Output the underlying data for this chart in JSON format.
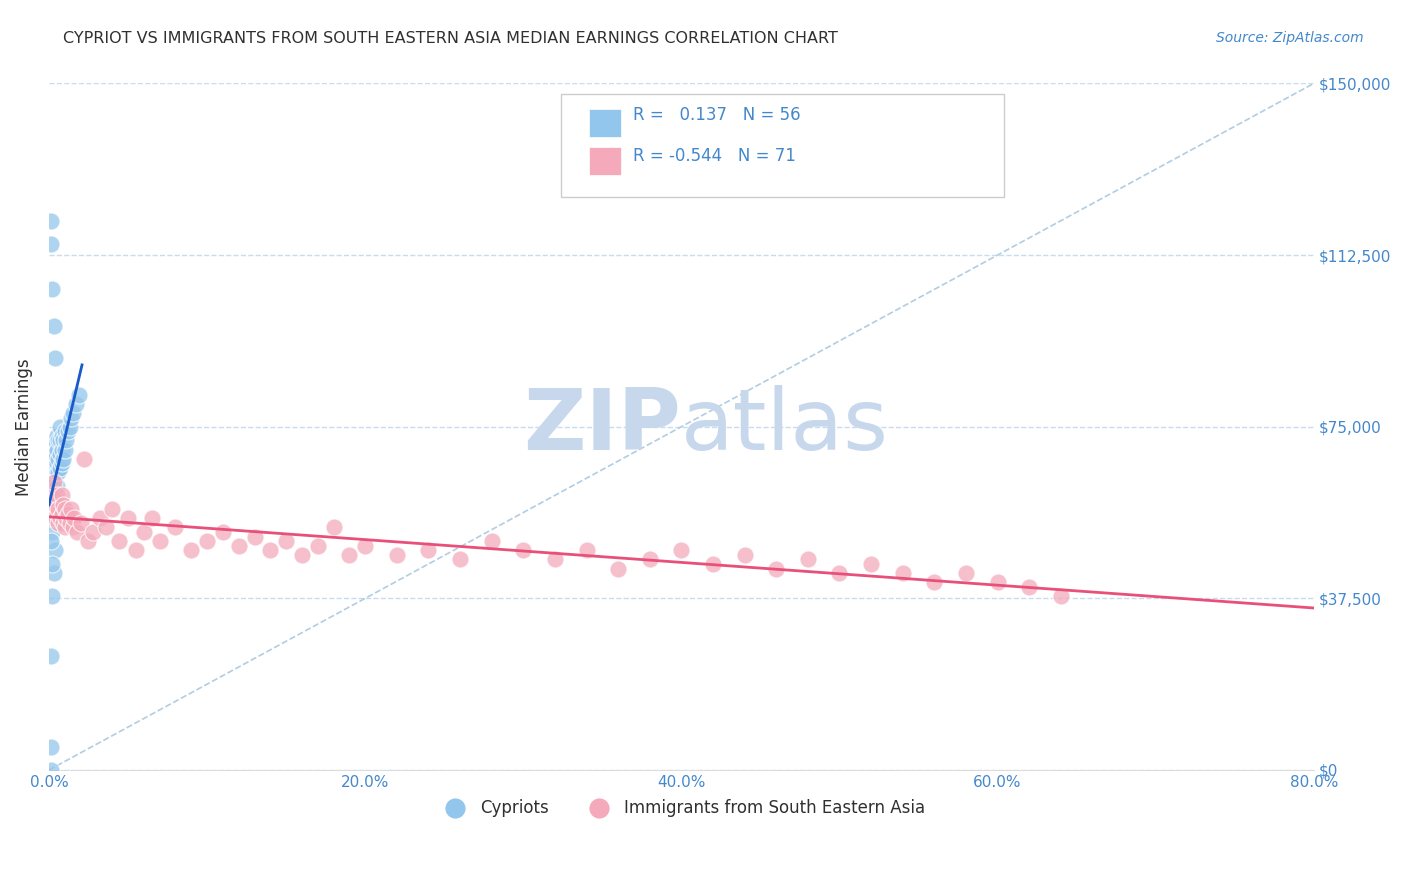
{
  "title": "CYPRIOT VS IMMIGRANTS FROM SOUTH EASTERN ASIA MEDIAN EARNINGS CORRELATION CHART",
  "source": "Source: ZipAtlas.com",
  "ylabel": "Median Earnings",
  "xlim": [
    0,
    0.8
  ],
  "ylim": [
    0,
    150000
  ],
  "yticks": [
    0,
    37500,
    75000,
    112500,
    150000
  ],
  "ytick_labels": [
    "$0",
    "$37,500",
    "$75,000",
    "$112,500",
    "$150,000"
  ],
  "xticks": [
    0.0,
    0.1,
    0.2,
    0.3,
    0.4,
    0.5,
    0.6,
    0.7,
    0.8
  ],
  "xtick_labels": [
    "0.0%",
    "",
    "20.0%",
    "",
    "40.0%",
    "",
    "60.0%",
    "",
    "80.0%"
  ],
  "blue_R": 0.137,
  "blue_N": 56,
  "pink_R": -0.544,
  "pink_N": 71,
  "blue_color": "#93C6EC",
  "pink_color": "#F4AABB",
  "blue_line_color": "#1A5AC8",
  "pink_line_color": "#E8507A",
  "ref_line_color": "#A8C8E0",
  "title_color": "#303030",
  "axis_label_color": "#303030",
  "tick_color": "#4488CC",
  "grid_color": "#C8DCF0",
  "watermark_color": "#C8D8EC",
  "background_color": "#FFFFFF",
  "blue_x": [
    0.001,
    0.001,
    0.001,
    0.002,
    0.002,
    0.002,
    0.002,
    0.003,
    0.003,
    0.003,
    0.003,
    0.003,
    0.003,
    0.004,
    0.004,
    0.004,
    0.004,
    0.004,
    0.004,
    0.005,
    0.005,
    0.005,
    0.005,
    0.005,
    0.006,
    0.006,
    0.006,
    0.007,
    0.007,
    0.007,
    0.007,
    0.008,
    0.008,
    0.008,
    0.009,
    0.009,
    0.01,
    0.01,
    0.011,
    0.012,
    0.013,
    0.014,
    0.015,
    0.017,
    0.019,
    0.001,
    0.001,
    0.002,
    0.003,
    0.004,
    0.002,
    0.003,
    0.004,
    0.001,
    0.001,
    0.002
  ],
  "blue_y": [
    5000,
    0,
    25000,
    52000,
    55000,
    57000,
    60000,
    58000,
    62000,
    64000,
    66000,
    68000,
    70000,
    60000,
    63000,
    65000,
    67000,
    69000,
    72000,
    62000,
    65000,
    67000,
    70000,
    73000,
    65000,
    68000,
    72000,
    66000,
    69000,
    72000,
    75000,
    67000,
    70000,
    73000,
    68000,
    72000,
    70000,
    74000,
    72000,
    74000,
    75000,
    77000,
    78000,
    80000,
    82000,
    115000,
    120000,
    105000,
    97000,
    90000,
    38000,
    43000,
    48000,
    55000,
    50000,
    45000
  ],
  "pink_x": [
    0.001,
    0.002,
    0.003,
    0.004,
    0.004,
    0.005,
    0.005,
    0.006,
    0.006,
    0.007,
    0.008,
    0.008,
    0.009,
    0.009,
    0.01,
    0.01,
    0.011,
    0.012,
    0.013,
    0.014,
    0.015,
    0.016,
    0.018,
    0.02,
    0.022,
    0.025,
    0.028,
    0.032,
    0.036,
    0.04,
    0.044,
    0.05,
    0.055,
    0.06,
    0.065,
    0.07,
    0.08,
    0.09,
    0.1,
    0.11,
    0.12,
    0.13,
    0.14,
    0.15,
    0.16,
    0.17,
    0.18,
    0.19,
    0.2,
    0.22,
    0.24,
    0.26,
    0.28,
    0.3,
    0.32,
    0.34,
    0.36,
    0.38,
    0.4,
    0.42,
    0.44,
    0.46,
    0.48,
    0.5,
    0.52,
    0.54,
    0.56,
    0.58,
    0.6,
    0.62,
    0.64
  ],
  "pink_y": [
    58000,
    60000,
    63000,
    55000,
    58000,
    56000,
    60000,
    54000,
    57000,
    55000,
    60000,
    56000,
    58000,
    54000,
    57000,
    53000,
    55000,
    56000,
    54000,
    57000,
    53000,
    55000,
    52000,
    54000,
    68000,
    50000,
    52000,
    55000,
    53000,
    57000,
    50000,
    55000,
    48000,
    52000,
    55000,
    50000,
    53000,
    48000,
    50000,
    52000,
    49000,
    51000,
    48000,
    50000,
    47000,
    49000,
    53000,
    47000,
    49000,
    47000,
    48000,
    46000,
    50000,
    48000,
    46000,
    48000,
    44000,
    46000,
    48000,
    45000,
    47000,
    44000,
    46000,
    43000,
    45000,
    43000,
    41000,
    43000,
    41000,
    40000,
    38000
  ]
}
